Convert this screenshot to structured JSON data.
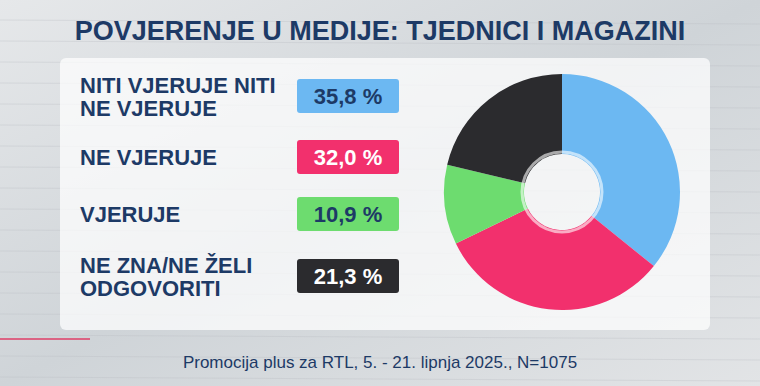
{
  "chart_data": {
    "type": "pie",
    "title": "POVJERENJE U MEDIJE: TJEDNICI I MAGAZINI",
    "categories": [
      "NITI VJERUJE NITI NE VJERUJE",
      "NE VJERUJE",
      "VJERUJE",
      "NE ZNA/NE ŽELI ODGOVORITI"
    ],
    "values": [
      35.8,
      32.0,
      10.9,
      21.3
    ],
    "value_labels": [
      "35,8 %",
      "32,0 %",
      "10,9 %",
      "21,3 %"
    ],
    "colors": [
      "#6cb8f2",
      "#f2306d",
      "#6ddc6f",
      "#2b2b2e"
    ],
    "data_labels": true,
    "source": "Promocija plus za RTL, 5. - 21. lipnja 2025., N=1075"
  }
}
